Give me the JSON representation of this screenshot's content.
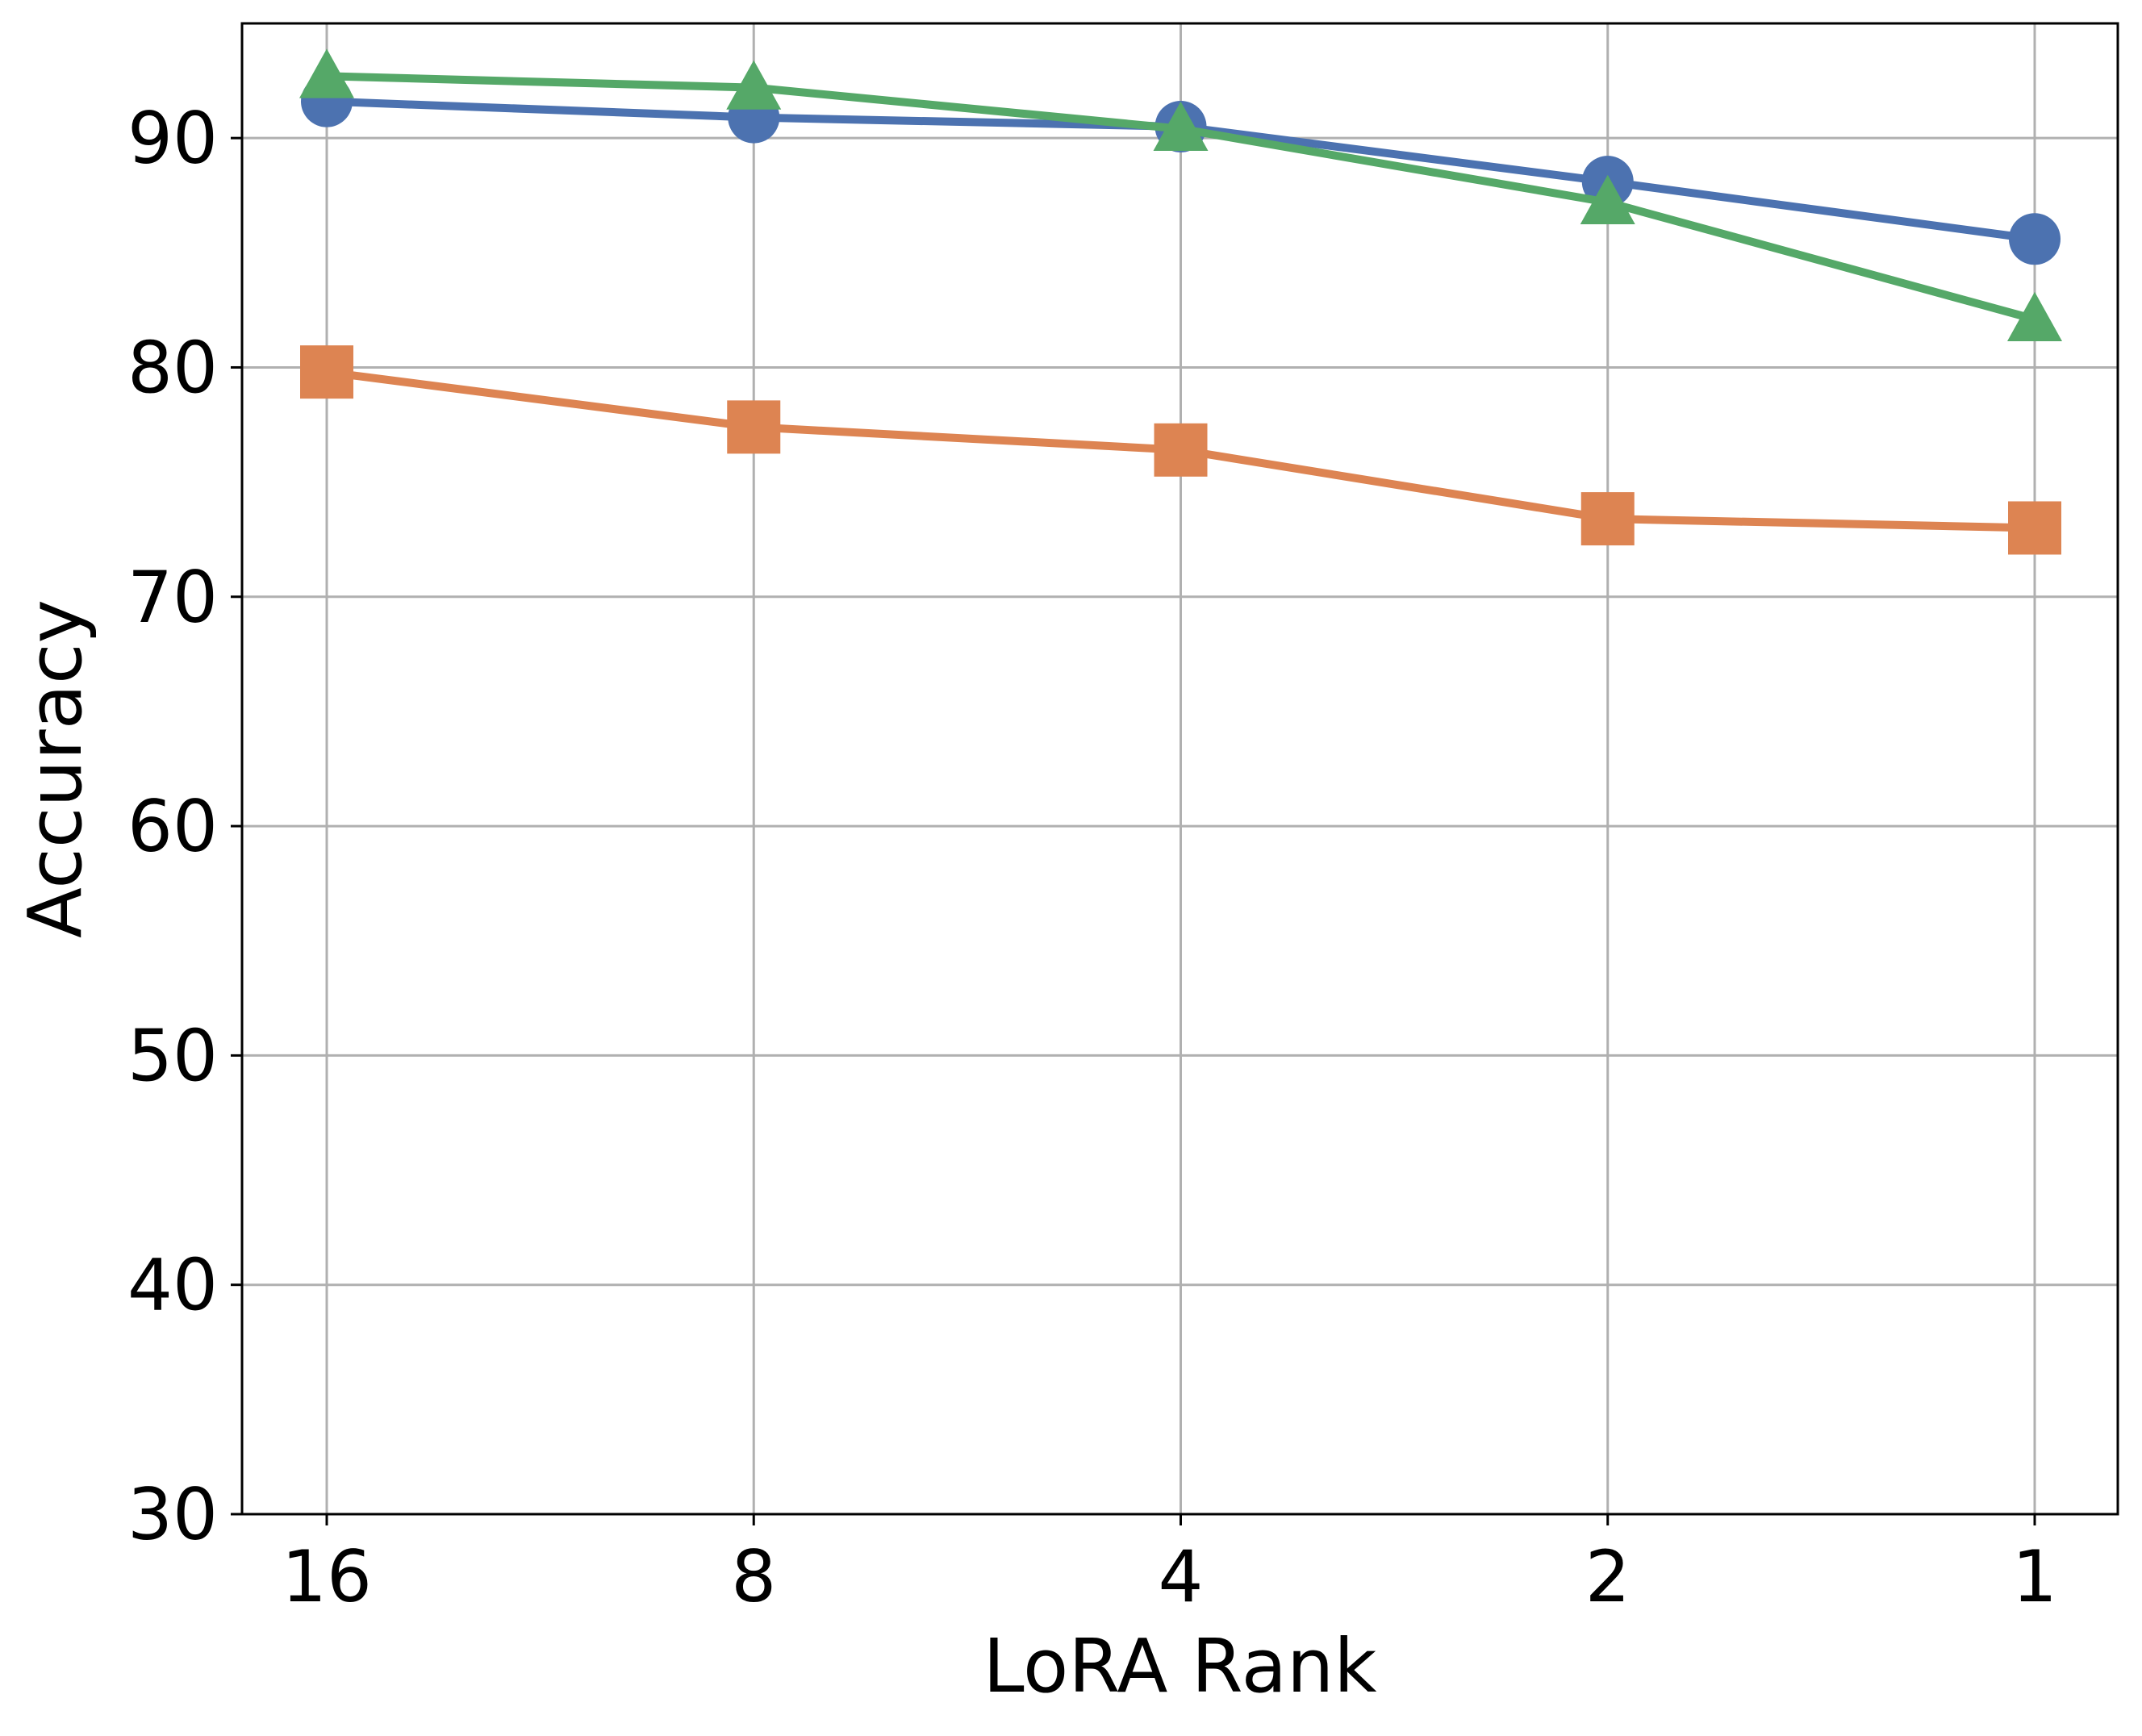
{
  "chart_data": {
    "type": "line",
    "title": "",
    "xlabel": "LoRA Rank",
    "ylabel": "Accuracy",
    "categories": [
      "16",
      "8",
      "4",
      "2",
      "1"
    ],
    "ylim": [
      30,
      95
    ],
    "yticks": [
      30,
      40,
      50,
      60,
      70,
      80,
      90
    ],
    "grid": true,
    "legend": "none",
    "series": [
      {
        "color": "#4c72b0",
        "marker": "circle",
        "values": [
          91.6,
          90.9,
          90.5,
          88.1,
          85.6
        ]
      },
      {
        "color": "#dd8452",
        "marker": "square",
        "values": [
          79.8,
          77.4,
          76.4,
          73.4,
          73.0
        ]
      },
      {
        "color": "#55a868",
        "marker": "triangle",
        "values": [
          92.7,
          92.2,
          90.4,
          87.2,
          82.1
        ]
      }
    ]
  }
}
